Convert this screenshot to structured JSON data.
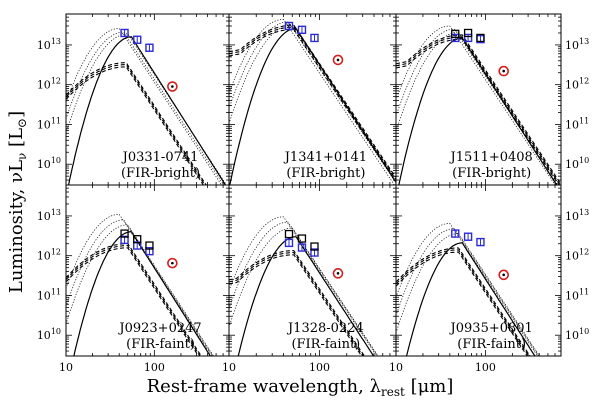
{
  "figure": {
    "ylabel": "Luminosity, νL",
    "ylabel_sub": "ν",
    "ylabel_unit": "[L",
    "ylabel_unit_sub": "⊙",
    "ylabel_unit_close": "]",
    "xlabel": "Rest-frame wavelength, λ",
    "xlabel_sub": "rest",
    "xlabel_unit": "[μm]"
  },
  "chart_data": [
    {
      "type": "scatter",
      "title": "J0331-0741",
      "subtitle": "(FIR-bright)",
      "xscale": "log",
      "yscale": "log",
      "xlim": [
        10,
        700
      ],
      "ylim": [
        3000000000.0,
        60000000000000.0
      ],
      "series": [
        {
          "marker": "blue-square",
          "x": [
            46,
            64,
            88
          ],
          "y": [
            20000000000000.0,
            13500000000000.0,
            8500000000000.0
          ]
        },
        {
          "marker": "black-square",
          "x": [],
          "y": []
        },
        {
          "marker": "red-circle",
          "x": [
            160
          ],
          "y": [
            900000000000.0
          ]
        }
      ],
      "solid_peak": {
        "x": 55,
        "y": 16000000000000.0
      },
      "dashed_peak": {
        "x": 48,
        "y": 3200000000000.0
      },
      "dotted_peaks": [
        {
          "x": 40,
          "y": 26000000000000.0
        },
        {
          "x": 45,
          "y": 21000000000000.0
        },
        {
          "x": 50,
          "y": 19000000000000.0
        }
      ],
      "dashed_floor_y": 300000000000.0
    },
    {
      "type": "scatter",
      "title": "J1341+0141",
      "subtitle": "(FIR-bright)",
      "xscale": "log",
      "yscale": "log",
      "xlim": [
        10,
        700
      ],
      "ylim": [
        3000000000.0,
        60000000000000.0
      ],
      "series": [
        {
          "marker": "blue-square",
          "x": [
            46,
            64,
            88
          ],
          "y": [
            30000000000000.0,
            24000000000000.0,
            15000000000000.0
          ]
        },
        {
          "marker": "black-square",
          "x": [],
          "y": []
        },
        {
          "marker": "red-circle",
          "x": [
            160
          ],
          "y": [
            4200000000000.0
          ]
        }
      ],
      "solid_peak": {
        "x": 55,
        "y": 26000000000000.0
      },
      "dashed_peak": {
        "x": 52,
        "y": 28000000000000.0
      },
      "dotted_peaks": [
        {
          "x": 40,
          "y": 44000000000000.0
        },
        {
          "x": 45,
          "y": 38000000000000.0
        },
        {
          "x": 50,
          "y": 33000000000000.0
        }
      ],
      "dashed_floor_y": 6000000000000.0
    },
    {
      "type": "scatter",
      "title": "J1511+0408",
      "subtitle": "(FIR-bright)",
      "xscale": "log",
      "yscale": "log",
      "xlim": [
        10,
        700
      ],
      "ylim": [
        3000000000.0,
        60000000000000.0
      ],
      "series": [
        {
          "marker": "blue-square",
          "x": [
            46,
            64,
            88
          ],
          "y": [
            15000000000000.0,
            15000000000000.0,
            14000000000000.0
          ]
        },
        {
          "marker": "black-square",
          "x": [
            46,
            64,
            88
          ],
          "y": [
            19000000000000.0,
            20000000000000.0,
            15000000000000.0
          ]
        },
        {
          "marker": "red-circle",
          "x": [
            160
          ],
          "y": [
            2200000000000.0
          ]
        }
      ],
      "solid_peak": {
        "x": 55,
        "y": 15000000000000.0
      },
      "dashed_peak": {
        "x": 55,
        "y": 16000000000000.0
      },
      "dotted_peaks": [
        {
          "x": 40,
          "y": 30000000000000.0
        },
        {
          "x": 45,
          "y": 25000000000000.0
        },
        {
          "x": 50,
          "y": 21000000000000.0
        }
      ],
      "dashed_floor_y": 3000000000000.0
    },
    {
      "type": "scatter",
      "title": "J0923+0247",
      "subtitle": "(FIR-faint)",
      "xscale": "log",
      "yscale": "log",
      "xlim": [
        10,
        700
      ],
      "ylim": [
        3000000000.0,
        60000000000000.0
      ],
      "series": [
        {
          "marker": "blue-square",
          "x": [
            46,
            64,
            88
          ],
          "y": [
            2500000000000.0,
            1800000000000.0,
            1300000000000.0
          ]
        },
        {
          "marker": "black-square",
          "x": [
            46,
            64,
            88
          ],
          "y": [
            3600000000000.0,
            2600000000000.0,
            1800000000000.0
          ]
        },
        {
          "marker": "red-circle",
          "x": [
            160
          ],
          "y": [
            650000000000.0
          ]
        }
      ],
      "solid_peak": {
        "x": 55,
        "y": 4000000000000.0
      },
      "dashed_peak": {
        "x": 50,
        "y": 1800000000000.0
      },
      "dotted_peaks": [
        {
          "x": 40,
          "y": 11000000000000.0
        },
        {
          "x": 45,
          "y": 8000000000000.0
        },
        {
          "x": 50,
          "y": 6000000000000.0
        }
      ],
      "dashed_floor_y": 200000000000.0
    },
    {
      "type": "scatter",
      "title": "J1328-0224",
      "subtitle": "(FIR-faint)",
      "xscale": "log",
      "yscale": "log",
      "xlim": [
        10,
        700
      ],
      "ylim": [
        3000000000.0,
        60000000000000.0
      ],
      "series": [
        {
          "marker": "blue-square",
          "x": [
            46,
            64,
            88
          ],
          "y": [
            2100000000000.0,
            1600000000000.0,
            1200000000000.0
          ]
        },
        {
          "marker": "black-square",
          "x": [
            46,
            64,
            88
          ],
          "y": [
            3500000000000.0,
            2700000000000.0,
            1700000000000.0
          ]
        },
        {
          "marker": "red-circle",
          "x": [
            160
          ],
          "y": [
            360000000000.0
          ]
        }
      ],
      "solid_peak": {
        "x": 55,
        "y": 3000000000000.0
      },
      "dashed_peak": {
        "x": 52,
        "y": 1200000000000.0
      },
      "dotted_peaks": [
        {
          "x": 40,
          "y": 9500000000000.0
        },
        {
          "x": 45,
          "y": 7000000000000.0
        },
        {
          "x": 50,
          "y": 5000000000000.0
        }
      ],
      "dashed_floor_y": 220000000000.0
    },
    {
      "type": "scatter",
      "title": "J0935+0801",
      "subtitle": "(FIR-faint)",
      "xscale": "log",
      "yscale": "log",
      "xlim": [
        10,
        700
      ],
      "ylim": [
        3000000000.0,
        60000000000000.0
      ],
      "series": [
        {
          "marker": "blue-square",
          "x": [
            46,
            64,
            88
          ],
          "y": [
            3600000000000.0,
            3000000000000.0,
            2200000000000.0
          ]
        },
        {
          "marker": "black-square",
          "x": [],
          "y": []
        },
        {
          "marker": "red-circle",
          "x": [
            160
          ],
          "y": [
            330000000000.0
          ]
        }
      ],
      "solid_peak": {
        "x": 55,
        "y": 2100000000000.0
      },
      "dashed_peak": {
        "x": 50,
        "y": 1400000000000.0
      },
      "dotted_peaks": [
        {
          "x": 40,
          "y": 6500000000000.0
        },
        {
          "x": 45,
          "y": 4800000000000.0
        },
        {
          "x": 50,
          "y": 3600000000000.0
        }
      ],
      "dashed_floor_y": 200000000000.0
    }
  ]
}
